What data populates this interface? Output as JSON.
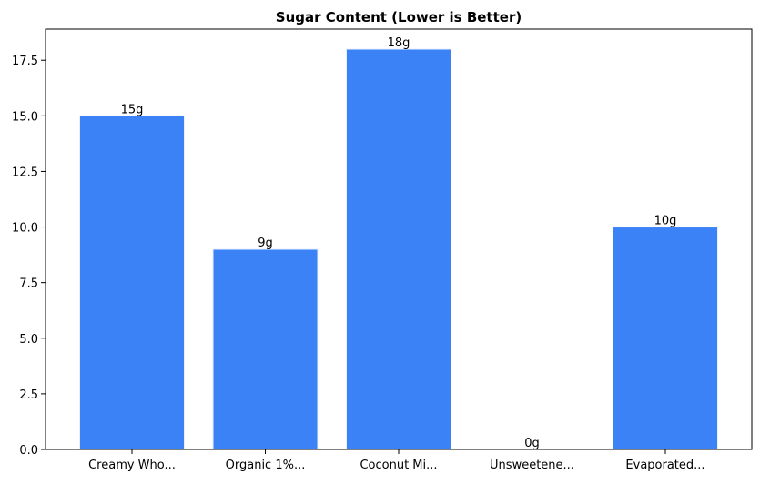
{
  "chart_data": {
    "type": "bar",
    "title": "Sugar Content (Lower is Better)",
    "xlabel": "",
    "ylabel": "",
    "categories": [
      "Creamy Who...",
      "Organic 1%...",
      "Coconut Mi...",
      "Unsweetene...",
      "Evaporated..."
    ],
    "values": [
      15,
      9,
      18,
      0,
      10
    ],
    "data_labels": [
      "15g",
      "9g",
      "18g",
      "0g",
      "10g"
    ],
    "ylim": [
      0,
      18.9
    ],
    "yticks": [
      0,
      2.5,
      5,
      7.5,
      10,
      12.5,
      15,
      17.5
    ],
    "ytick_labels": [
      "0.0",
      "2.5",
      "5.0",
      "7.5",
      "10.0",
      "12.5",
      "15.0",
      "17.5"
    ],
    "grid": false,
    "bar_color": "#3b82f6",
    "bar_edge_color": "#e8f0fe"
  }
}
